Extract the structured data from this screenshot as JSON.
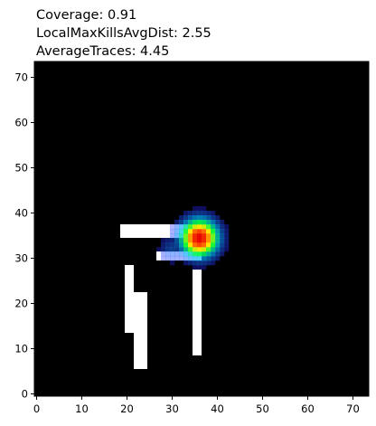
{
  "chart_data": {
    "type": "heatmap",
    "title_lines": [
      "Coverage: 0.91",
      "LocalMaxKillsAvgDist: 2.55",
      "AverageTraces: 4.45"
    ],
    "xlabel": "",
    "ylabel": "",
    "xlim": [
      -0.5,
      73.5
    ],
    "ylim": [
      73.5,
      -0.5
    ],
    "x_ticks": [
      0,
      10,
      20,
      30,
      40,
      50,
      60,
      70
    ],
    "y_ticks": [
      0,
      10,
      20,
      30,
      40,
      50,
      60,
      70
    ],
    "grid": false,
    "background_color": "#000000",
    "path_color": "#ffffff",
    "path_cells": [
      {
        "x0": 22,
        "x1": 24,
        "y0": 23,
        "y1": 39
      },
      {
        "x0": 20,
        "x1": 21,
        "y0": 29,
        "y1": 43
      },
      {
        "x0": 19,
        "x1": 23,
        "y0": 38,
        "y1": 40
      },
      {
        "x0": 22,
        "x1": 36,
        "y0": 38,
        "y1": 40
      },
      {
        "x0": 27,
        "x1": 36,
        "y0": 32,
        "y1": 33
      },
      {
        "x0": 35,
        "x1": 36,
        "y0": 28,
        "y1": 46
      }
    ],
    "heat_blobs": [
      {
        "x": 36,
        "y": 35.5,
        "intensity": 1.0,
        "spread": 3.2
      },
      {
        "x": 39,
        "y": 35,
        "intensity": 0.55,
        "spread": 1.4
      },
      {
        "x": 30,
        "y": 33,
        "intensity": 0.25,
        "spread": 2.5
      }
    ]
  }
}
